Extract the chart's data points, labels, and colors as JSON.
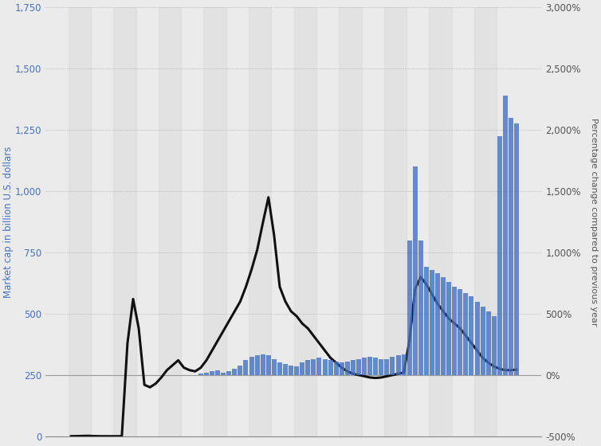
{
  "left_ylabel": "Market cap in billion U.S. dollars",
  "right_ylabel": "Percentage change compared to previous year",
  "left_color": "#4472c4",
  "line_color": "#111111",
  "bar_color": "#4472c4",
  "bg_color": "#ebebeb",
  "stripe_color_light": "#f2f2f2",
  "stripe_color_dark": "#e2e2e2",
  "left_ylim": [
    0,
    1750
  ],
  "left_yticks": [
    0,
    250,
    500,
    750,
    1000,
    1250,
    1500,
    1750
  ],
  "right_ylim": [
    -500,
    3000
  ],
  "right_yticks": [
    -500,
    0,
    500,
    1000,
    1500,
    2000,
    2500,
    3000
  ],
  "market_cap": [
    0.5,
    0.8,
    1.5,
    2.0,
    1.0,
    0.5,
    0.3,
    0.2,
    0.3,
    0.5,
    380,
    560,
    440,
    210,
    200,
    215,
    240,
    270,
    290,
    310,
    280,
    270,
    265,
    280,
    310,
    350,
    390,
    430,
    470,
    510,
    550,
    610,
    680,
    760,
    870,
    975,
    820,
    610,
    550,
    510,
    490,
    460,
    440,
    410,
    380,
    350,
    320,
    300,
    280,
    265,
    255,
    250,
    245,
    240,
    238,
    240,
    245,
    250,
    255,
    260,
    390,
    600,
    650,
    620,
    580,
    540,
    510,
    480,
    460,
    440,
    410,
    380,
    350,
    320,
    300,
    285,
    275,
    270,
    270,
    272
  ],
  "pct_change": [
    0,
    0,
    0,
    0,
    0,
    0,
    0,
    0,
    0,
    0,
    0,
    0,
    0,
    0,
    0,
    0,
    0,
    0,
    0,
    0,
    0,
    0,
    0,
    10,
    20,
    30,
    40,
    20,
    30,
    50,
    80,
    120,
    150,
    160,
    170,
    160,
    130,
    100,
    90,
    80,
    70,
    100,
    120,
    130,
    140,
    130,
    120,
    110,
    100,
    110,
    120,
    130,
    140,
    150,
    140,
    130,
    130,
    150,
    160,
    170,
    1100,
    1700,
    1100,
    880,
    860,
    830,
    800,
    760,
    720,
    700,
    670,
    640,
    600,
    560,
    520,
    480,
    1950,
    2280,
    2100,
    2050
  ]
}
